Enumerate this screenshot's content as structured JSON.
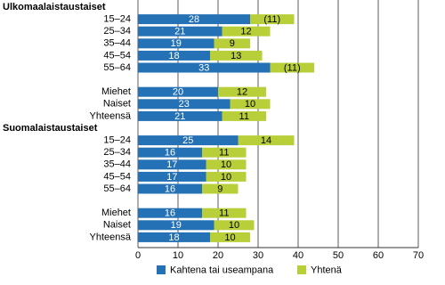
{
  "chart_data": {
    "type": "stacked-bar-horizontal",
    "categories": [
      "Ulkomaalaistaustaiset",
      "15–24",
      "25–34",
      "35–44",
      "45–54",
      "55–64",
      null,
      "Miehet",
      "Naiset",
      "Yhteensä",
      "Suomalaistaustaiset",
      "15–24",
      "25–34",
      "35–44",
      "45–54",
      "55–64",
      null,
      "Miehet",
      "Naiset",
      "Yhteensä"
    ],
    "series": [
      {
        "name": "Kahtena tai useampana",
        "color": "#2471b5",
        "values": [
          null,
          28,
          21,
          19,
          18,
          33,
          null,
          20,
          23,
          21,
          null,
          25,
          16,
          17,
          17,
          16,
          null,
          16,
          19,
          18
        ]
      },
      {
        "name": "Yhtenä",
        "color": "#b8cf3a",
        "values": [
          null,
          11,
          12,
          9,
          13,
          11,
          null,
          12,
          10,
          11,
          null,
          14,
          11,
          10,
          10,
          9,
          null,
          11,
          10,
          10
        ],
        "value_labels": [
          null,
          "(11)",
          "12",
          "9",
          "13",
          "(11)",
          null,
          "12",
          "10",
          "11",
          null,
          "14",
          "11",
          "10",
          "10",
          "9",
          null,
          "11",
          "10",
          "10"
        ]
      }
    ],
    "xlim": [
      0,
      70
    ],
    "xticks": [
      0,
      10,
      20,
      30,
      40,
      50,
      60,
      70
    ],
    "grid": true,
    "legend": "bottom"
  }
}
